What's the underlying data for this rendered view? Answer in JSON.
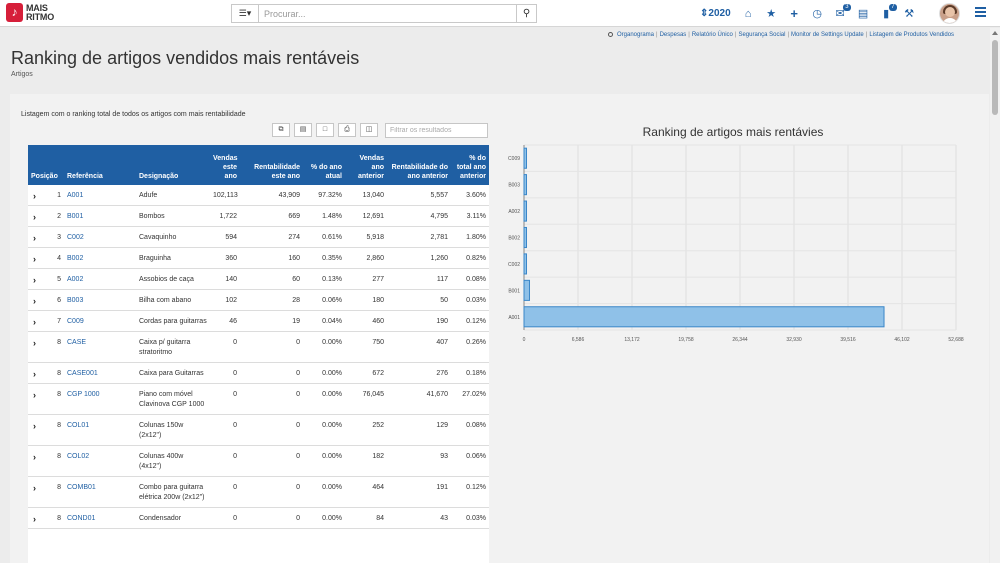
{
  "topbar": {
    "logo_mark": "♪",
    "logo_line1": "MAIS",
    "logo_line2": "RITMO",
    "search_dropdown": "☰▾",
    "search_placeholder": "Procurar...",
    "year": "⇕2020",
    "messages_badge": "3",
    "chat_badge": "7"
  },
  "quick_links": [
    "Organograma",
    "Despesas",
    "Relatório Único",
    "Segurança Social",
    "Monitor de Settings Update",
    "Listagem de Produtos Vendidos"
  ],
  "page": {
    "title": "Ranking de artigos vendidos mais rentáveis",
    "breadcrumb": "Artigos",
    "table_caption": "Listagem com o ranking total de todos os artigos com mais rentabilidade",
    "filter_placeholder": "Filtrar os resultados"
  },
  "table": {
    "headers": {
      "posicao": "Posição",
      "referencia": "Referência",
      "designacao": "Designação",
      "vendas": "Vendas este ano",
      "rentab": "Rentabilidade este ano",
      "pct_atual": "% do ano atual",
      "vendas_ant": "Vendas ano anterior",
      "rentab_ant": "Rentabilidade do ano anterior",
      "pct_ant": "% do total ano anterior"
    },
    "rows": [
      {
        "pos": "1",
        "ref": "A001",
        "desig": "Adufe",
        "vendas": "102,113",
        "rentab": "43,909",
        "pct": "97.32%",
        "vendas_ant": "13,040",
        "rentab_ant": "5,557",
        "pct_ant": "3.60%"
      },
      {
        "pos": "2",
        "ref": "B001",
        "desig": "Bombos",
        "vendas": "1,722",
        "rentab": "669",
        "pct": "1.48%",
        "vendas_ant": "12,691",
        "rentab_ant": "4,795",
        "pct_ant": "3.11%"
      },
      {
        "pos": "3",
        "ref": "C002",
        "desig": "Cavaquinho",
        "vendas": "594",
        "rentab": "274",
        "pct": "0.61%",
        "vendas_ant": "5,918",
        "rentab_ant": "2,781",
        "pct_ant": "1.80%"
      },
      {
        "pos": "4",
        "ref": "B002",
        "desig": "Braguinha",
        "vendas": "360",
        "rentab": "160",
        "pct": "0.35%",
        "vendas_ant": "2,860",
        "rentab_ant": "1,260",
        "pct_ant": "0.82%"
      },
      {
        "pos": "5",
        "ref": "A002",
        "desig": "Assobios de caça",
        "vendas": "140",
        "rentab": "60",
        "pct": "0.13%",
        "vendas_ant": "277",
        "rentab_ant": "117",
        "pct_ant": "0.08%"
      },
      {
        "pos": "6",
        "ref": "B003",
        "desig": "Bilha com abano",
        "vendas": "102",
        "rentab": "28",
        "pct": "0.06%",
        "vendas_ant": "180",
        "rentab_ant": "50",
        "pct_ant": "0.03%"
      },
      {
        "pos": "7",
        "ref": "C009",
        "desig": "Cordas para guitarras",
        "vendas": "46",
        "rentab": "19",
        "pct": "0.04%",
        "vendas_ant": "460",
        "rentab_ant": "190",
        "pct_ant": "0.12%"
      },
      {
        "pos": "8",
        "ref": "CASE",
        "desig": "Caixa p/ guitarra stratoritmo",
        "vendas": "0",
        "rentab": "0",
        "pct": "0.00%",
        "vendas_ant": "750",
        "rentab_ant": "407",
        "pct_ant": "0.26%"
      },
      {
        "pos": "8",
        "ref": "CASE001",
        "desig": "Caixa para Guitarras",
        "vendas": "0",
        "rentab": "0",
        "pct": "0.00%",
        "vendas_ant": "672",
        "rentab_ant": "276",
        "pct_ant": "0.18%"
      },
      {
        "pos": "8",
        "ref": "CGP 1000",
        "desig": "Piano com móvel Clavinova CGP 1000",
        "vendas": "0",
        "rentab": "0",
        "pct": "0.00%",
        "vendas_ant": "76,045",
        "rentab_ant": "41,670",
        "pct_ant": "27.02%"
      },
      {
        "pos": "8",
        "ref": "COL01",
        "desig": "Colunas 150w (2x12\")",
        "vendas": "0",
        "rentab": "0",
        "pct": "0.00%",
        "vendas_ant": "252",
        "rentab_ant": "129",
        "pct_ant": "0.08%"
      },
      {
        "pos": "8",
        "ref": "COL02",
        "desig": "Colunas 400w (4x12\")",
        "vendas": "0",
        "rentab": "0",
        "pct": "0.00%",
        "vendas_ant": "182",
        "rentab_ant": "93",
        "pct_ant": "0.06%"
      },
      {
        "pos": "8",
        "ref": "COMB01",
        "desig": "Combo para guitarra elétrica 200w (2x12\")",
        "vendas": "0",
        "rentab": "0",
        "pct": "0.00%",
        "vendas_ant": "464",
        "rentab_ant": "191",
        "pct_ant": "0.12%"
      },
      {
        "pos": "8",
        "ref": "COND01",
        "desig": "Condensador",
        "vendas": "0",
        "rentab": "0",
        "pct": "0.00%",
        "vendas_ant": "84",
        "rentab_ant": "43",
        "pct_ant": "0.03%"
      }
    ]
  },
  "chart_data": {
    "type": "bar",
    "orientation": "horizontal",
    "title": "Ranking de artigos mais rentávies",
    "categories": [
      "C009",
      "B003",
      "A002",
      "B002",
      "C002",
      "B001",
      "A001"
    ],
    "values": [
      19,
      28,
      60,
      160,
      274,
      669,
      43909
    ],
    "xlim": [
      0,
      52688
    ],
    "xticks": [
      "0",
      "6,586",
      "13,172",
      "19,758",
      "26,344",
      "32,930",
      "39,516",
      "46,102",
      "52,688"
    ],
    "tick_values": [
      0,
      6586,
      13172,
      19758,
      26344,
      32930,
      39516,
      46102,
      52688
    ],
    "grid": true,
    "bar_color": "#8fc1e8",
    "bar_border": "#3a86c8"
  }
}
